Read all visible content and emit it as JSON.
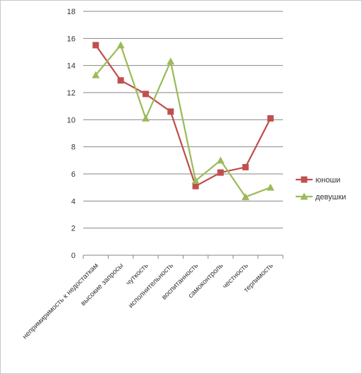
{
  "chart_data": {
    "type": "line",
    "categories": [
      "непримиримость к недостаткам",
      "высокие запросы",
      "чуткость",
      "исполнительность",
      "воспитанность",
      "самоконтроль",
      "честность",
      "терпимость"
    ],
    "ylim": [
      0,
      18
    ],
    "yticks": [
      "0",
      "2",
      "4",
      "6",
      "8",
      "10",
      "12",
      "14",
      "16",
      "18"
    ],
    "grid": true,
    "legend_position": "right",
    "series": [
      {
        "name": "юноши",
        "color": "#c0504d",
        "marker": "square",
        "values": [
          15.5,
          12.9,
          11.9,
          10.6,
          5.1,
          6.1,
          6.5,
          10.1
        ]
      },
      {
        "name": "девушки",
        "color": "#9bbb59",
        "marker": "triangle",
        "values": [
          13.3,
          15.5,
          10.1,
          14.3,
          5.5,
          7.0,
          4.3,
          5.0
        ]
      }
    ]
  }
}
